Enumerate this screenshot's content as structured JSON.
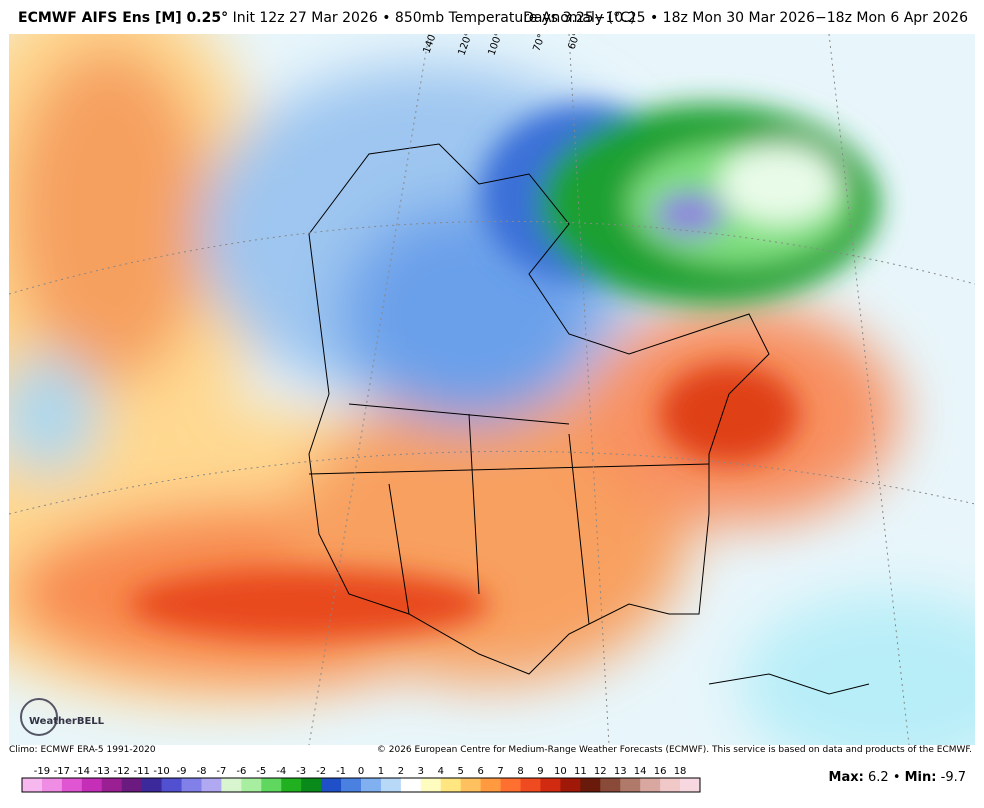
{
  "header": {
    "title": "ECMWF AIFS Ens [M] 0.25°",
    "subtitle": "Init 12z 27 Mar 2026 • 850mb Temperature Anomaly (°C)",
    "period": "Days 3.25−10.25 • 18z Mon 30 Mar 2026−18z Mon 6 Apr 2026"
  },
  "map": {
    "longitude_labels": [
      "140°W",
      "120°W",
      "100°W",
      "70°W",
      "60°W"
    ],
    "logo": "WeatherBELL"
  },
  "footer": {
    "climo": "Climo: ECMWF ERA-5 1991-2020",
    "copyright": "© 2026 European Centre for Medium-Range Weather Forecasts (ECMWF). This service is based on data and products of the ECMWF."
  },
  "colorbar": {
    "labels": [
      -19,
      -17,
      -14,
      -13,
      -12,
      -11,
      -10,
      -9,
      -8,
      -7,
      -6,
      -5,
      -4,
      -3,
      -2,
      -1,
      0,
      1,
      2,
      3,
      4,
      5,
      6,
      7,
      8,
      9,
      10,
      11,
      12,
      13,
      14,
      16,
      18
    ],
    "colors": [
      "#f7b8f0",
      "#ef8ce4",
      "#e055d2",
      "#c52fb8",
      "#9a1f92",
      "#6b1a80",
      "#3c2a9c",
      "#5050d0",
      "#8080e8",
      "#b0a8f0",
      "#d8f5d0",
      "#a8eea0",
      "#60d860",
      "#20b020",
      "#0a8a1a",
      "#2050c8",
      "#4a80e0",
      "#80b0f0",
      "#b8d8f8",
      "#ffffff",
      "#fffcc0",
      "#ffe680",
      "#ffc060",
      "#ff9a40",
      "#ff7030",
      "#f04a20",
      "#d02a10",
      "#a01808",
      "#6a1a0a",
      "#8a4a3a",
      "#b07a6a",
      "#d8a8a0",
      "#f0c8c8",
      "#f8d8e0"
    ]
  },
  "stats": {
    "max_label": "Max:",
    "max": 6.2,
    "separator": "•",
    "min_label": "Min:",
    "min": -9.7
  }
}
